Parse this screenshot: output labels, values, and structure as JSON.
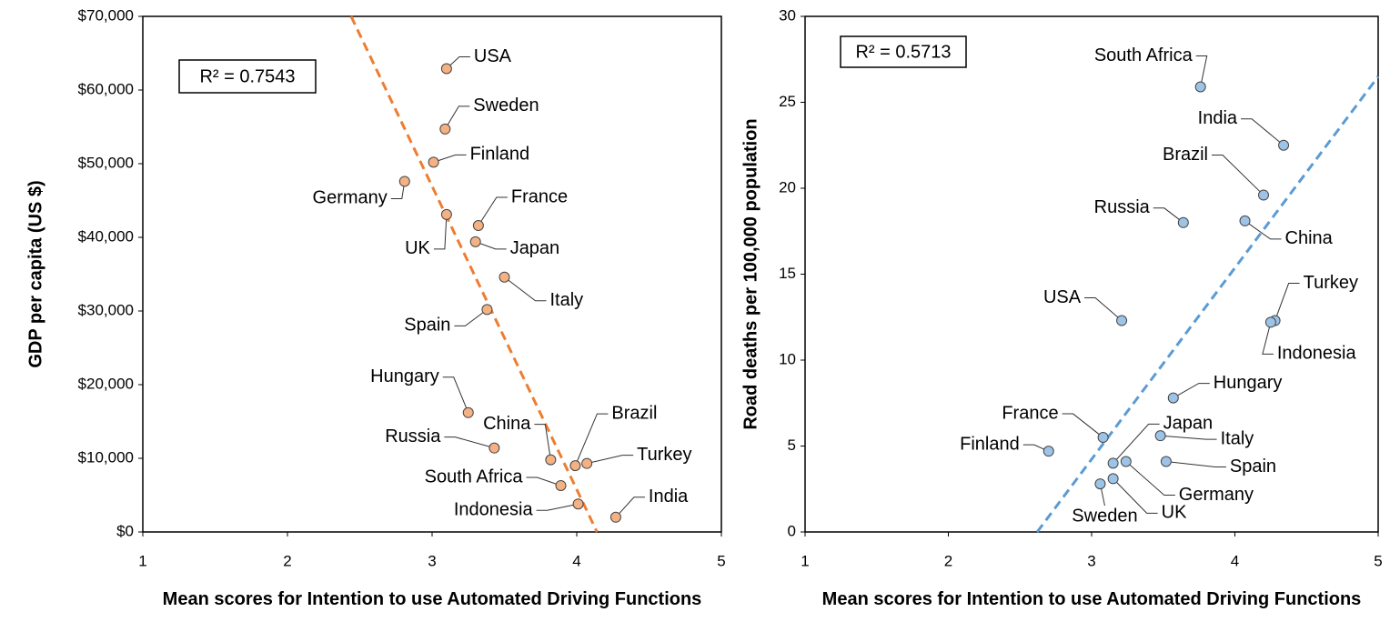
{
  "chart_data": [
    {
      "type": "scatter",
      "ylabel": "GDP per capita (US $)",
      "xlabel": "Mean scores for Intention to use Automated Driving Functions",
      "annotation": "R² = 0.7543",
      "color": "#F4B183",
      "trend_color": "#ED7D31",
      "labels": [
        "USA",
        "Sweden",
        "Finland",
        "Germany",
        "France",
        "UK",
        "Japan",
        "Italy",
        "Spain",
        "Hungary",
        "Russia",
        "China",
        "Brazil",
        "Turkey",
        "South Africa",
        "Indonesia",
        "India"
      ],
      "x": [
        3.1,
        3.09,
        3.01,
        2.81,
        3.32,
        3.1,
        3.3,
        3.5,
        3.38,
        3.25,
        3.43,
        3.82,
        3.99,
        4.07,
        3.89,
        4.01,
        4.27
      ],
      "y": [
        62900,
        54700,
        50200,
        47600,
        41600,
        43100,
        39400,
        34600,
        30200,
        16200,
        11400,
        9800,
        9000,
        9300,
        6300,
        3800,
        2000
      ],
      "trendline": {
        "x": [
          2.44,
          4.14
        ],
        "y": [
          70000,
          0
        ]
      },
      "xlim": [
        1,
        5
      ],
      "xticks": [
        1,
        2,
        3,
        4,
        5
      ],
      "ylim": [
        0,
        70000
      ],
      "yticks": [
        {
          "value": 0,
          "label": "$0"
        },
        {
          "value": 10000,
          "label": "$10,000"
        },
        {
          "value": 20000,
          "label": "$20,000"
        },
        {
          "value": 30000,
          "label": "$30,000"
        },
        {
          "value": 40000,
          "label": "$40,000"
        },
        {
          "value": 50000,
          "label": "$50,000"
        },
        {
          "value": 60000,
          "label": "$60,000"
        },
        {
          "value": 70000,
          "label": "$70,000"
        }
      ]
    },
    {
      "type": "scatter",
      "ylabel": "Road deaths per 100,000 population",
      "xlabel": "Mean scores for Intention to use Automated Driving Functions",
      "annotation": "R² = 0.5713",
      "color": "#9DC3E6",
      "trend_color": "#5B9BD5",
      "labels": [
        "South Africa",
        "India",
        "Brazil",
        "China",
        "Russia",
        "Turkey",
        "Indonesia",
        "USA",
        "Hungary",
        "France",
        "Japan",
        "Italy",
        "Spain",
        "Germany",
        "Finland",
        "Sweden",
        "UK"
      ],
      "x": [
        3.76,
        4.34,
        4.2,
        4.07,
        3.64,
        4.28,
        4.25,
        3.21,
        3.57,
        3.08,
        3.15,
        3.48,
        3.52,
        3.24,
        2.7,
        3.06,
        3.15
      ],
      "y": [
        25.9,
        22.5,
        19.6,
        18.1,
        18.0,
        12.3,
        12.2,
        12.3,
        7.8,
        5.5,
        4.0,
        5.6,
        4.1,
        4.1,
        4.7,
        2.8,
        3.1
      ],
      "trendline": {
        "x": [
          2.62,
          5
        ],
        "y": [
          0,
          26.5
        ]
      },
      "xlim": [
        1,
        5
      ],
      "xticks": [
        1,
        2,
        3,
        4,
        5
      ],
      "ylim": [
        0,
        30
      ],
      "yticks": [
        0,
        5,
        10,
        15,
        20,
        25,
        30
      ]
    }
  ]
}
